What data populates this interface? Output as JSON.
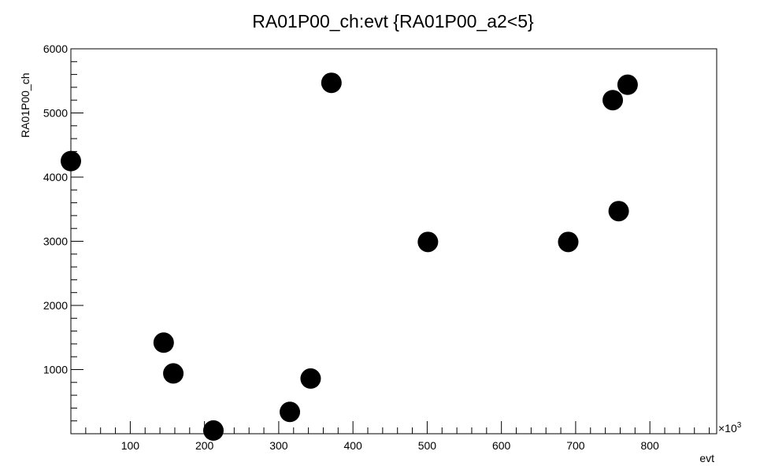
{
  "chart_data": {
    "type": "scatter",
    "title": "RA01P00_ch:evt {RA01P00_a2<5}",
    "xlabel": "evt",
    "ylabel": "RA01P00_ch",
    "x_exponent_label": "×10",
    "x_exponent_power": "3",
    "xlim": [
      20,
      890
    ],
    "ylim": [
      0,
      6000
    ],
    "x_major_ticks": [
      100,
      200,
      300,
      400,
      500,
      600,
      700,
      800
    ],
    "y_major_ticks": [
      1000,
      2000,
      3000,
      4000,
      5000,
      6000
    ],
    "x_tick_labels": [
      "100",
      "200",
      "300",
      "400",
      "500",
      "600",
      "700",
      "800"
    ],
    "y_tick_labels": [
      "1000",
      "2000",
      "3000",
      "4000",
      "5000",
      "6000"
    ],
    "grid": false,
    "marker_color": "#000000",
    "points": [
      {
        "x": 20,
        "y": 4250
      },
      {
        "x": 145,
        "y": 1420
      },
      {
        "x": 158,
        "y": 940
      },
      {
        "x": 212,
        "y": 50
      },
      {
        "x": 315,
        "y": 340
      },
      {
        "x": 343,
        "y": 860
      },
      {
        "x": 371,
        "y": 5470
      },
      {
        "x": 501,
        "y": 2990
      },
      {
        "x": 690,
        "y": 2990
      },
      {
        "x": 750,
        "y": 5200
      },
      {
        "x": 758,
        "y": 3470
      },
      {
        "x": 770,
        "y": 5440
      }
    ]
  }
}
